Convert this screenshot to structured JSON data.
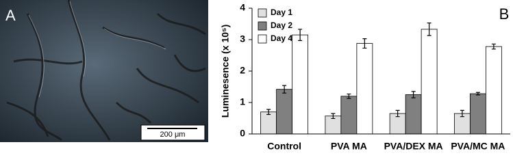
{
  "panel_a": {
    "label": "A",
    "scale_bar": "200 μm"
  },
  "chart_data": {
    "type": "bar",
    "panel_label": "B",
    "y_label": "Luminesence (x 10⁵)",
    "categories": [
      "Control",
      "PVA MA",
      "PVA/DEX MA",
      "PVA/MC MA"
    ],
    "series": [
      {
        "name": "Day 1",
        "color": "#e0e0e0",
        "values": [
          0.7,
          0.57,
          0.65,
          0.65
        ],
        "errors": [
          0.08,
          0.08,
          0.1,
          0.1
        ]
      },
      {
        "name": "Day 2",
        "color": "#808080",
        "values": [
          1.42,
          1.2,
          1.25,
          1.28
        ],
        "errors": [
          0.12,
          0.07,
          0.1,
          0.04
        ]
      },
      {
        "name": "Day 4",
        "color": "#ffffff",
        "values": [
          3.15,
          2.88,
          3.33,
          2.78
        ],
        "errors": [
          0.18,
          0.15,
          0.2,
          0.08
        ]
      }
    ],
    "ylim": [
      0,
      4
    ],
    "yticks": [
      0,
      1,
      2,
      3,
      4
    ],
    "grid": false,
    "legend": "upper left"
  }
}
